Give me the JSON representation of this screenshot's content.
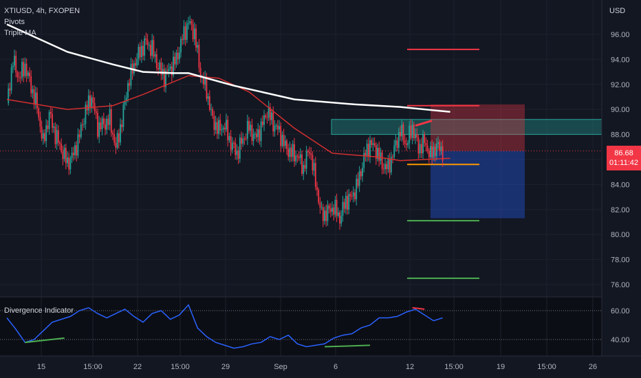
{
  "header": {
    "symbol": "XTIUSD, 4h, FXOPEN",
    "indicator_1": "Pivots",
    "indicator_2": "Triple MA",
    "currency": "USD"
  },
  "price_label": {
    "price": "86.68",
    "countdown": "01:11:42"
  },
  "lower_panel": {
    "title": "Divergence Indicator"
  },
  "colors": {
    "background": "#131722",
    "up": "#26a69a",
    "down": "#f23645",
    "ma_long": "#ffffff",
    "ma_mid": "#d32f2f",
    "osc": "#2962ff",
    "pivot_up": "#f23645",
    "pivot_down": "#4caf50",
    "orange": "#ff9800"
  },
  "chart_data": [
    {
      "type": "candlestick",
      "title": "XTIUSD, 4h, FXOPEN",
      "y_axis": {
        "ticks": [
          "96.00",
          "94.00",
          "92.00",
          "90.00",
          "88.00",
          "86.00",
          "84.00",
          "82.00",
          "80.00",
          "78.00",
          "76.00"
        ],
        "ylim": [
          75.0,
          98.5
        ]
      },
      "x_axis": {
        "ticks": [
          "15",
          "15:00",
          "22",
          "15:00",
          "29",
          "Sep",
          "6",
          "12",
          "15:00",
          "19",
          "15:00",
          "26"
        ]
      },
      "last_price": 86.68,
      "close_path": [
        [
          0,
          90.5
        ],
        [
          4,
          93.9
        ],
        [
          8,
          92.5
        ],
        [
          12,
          93.5
        ],
        [
          16,
          91.8
        ],
        [
          20,
          90.2
        ],
        [
          24,
          87.3
        ],
        [
          28,
          89.6
        ],
        [
          32,
          88.0
        ],
        [
          36,
          86.8
        ],
        [
          40,
          85.7
        ],
        [
          44,
          86.4
        ],
        [
          48,
          87.9
        ],
        [
          52,
          89.9
        ],
        [
          56,
          91.0
        ],
        [
          60,
          88.6
        ],
        [
          64,
          88.8
        ],
        [
          68,
          89.2
        ],
        [
          72,
          86.9
        ],
        [
          76,
          89.1
        ],
        [
          80,
          92.0
        ],
        [
          84,
          93.6
        ],
        [
          88,
          94.6
        ],
        [
          92,
          95.4
        ],
        [
          96,
          94.8
        ],
        [
          100,
          93.4
        ],
        [
          104,
          92.6
        ],
        [
          108,
          93.3
        ],
        [
          112,
          94.0
        ],
        [
          116,
          95.7
        ],
        [
          120,
          97.0
        ],
        [
          124,
          96.1
        ],
        [
          128,
          92.8
        ],
        [
          132,
          91.5
        ],
        [
          136,
          89.1
        ],
        [
          140,
          88.4
        ],
        [
          144,
          88.7
        ],
        [
          148,
          87.3
        ],
        [
          152,
          86.5
        ],
        [
          156,
          87.6
        ],
        [
          160,
          88.6
        ],
        [
          164,
          87.7
        ],
        [
          168,
          88.5
        ],
        [
          172,
          89.9
        ],
        [
          176,
          88.9
        ],
        [
          180,
          88.2
        ],
        [
          184,
          87.0
        ],
        [
          188,
          86.5
        ],
        [
          192,
          86.3
        ],
        [
          196,
          85.3
        ],
        [
          200,
          86.9
        ],
        [
          204,
          84.2
        ],
        [
          208,
          81.5
        ],
        [
          212,
          81.8
        ],
        [
          216,
          82.2
        ],
        [
          220,
          81.3
        ],
        [
          224,
          82.7
        ],
        [
          228,
          83.0
        ],
        [
          232,
          84.1
        ],
        [
          236,
          86.1
        ],
        [
          240,
          87.3
        ],
        [
          244,
          86.8
        ],
        [
          248,
          85.6
        ],
        [
          252,
          85.3
        ],
        [
          256,
          86.8
        ],
        [
          260,
          88.3
        ],
        [
          264,
          87.2
        ],
        [
          268,
          88.6
        ],
        [
          272,
          86.9
        ],
        [
          276,
          87.4
        ],
        [
          280,
          86.3
        ],
        [
          284,
          87.1
        ],
        [
          288,
          86.68
        ]
      ],
      "ma_long_path": [
        [
          0,
          96.8
        ],
        [
          40,
          94.6
        ],
        [
          70,
          93.6
        ],
        [
          90,
          93.0
        ],
        [
          110,
          92.9
        ],
        [
          120,
          92.9
        ],
        [
          150,
          91.9
        ],
        [
          190,
          90.8
        ],
        [
          230,
          90.4
        ],
        [
          260,
          90.2
        ],
        [
          293,
          89.8
        ]
      ],
      "ma_mid_path": [
        [
          0,
          90.8
        ],
        [
          40,
          90.0
        ],
        [
          70,
          90.3
        ],
        [
          90,
          91.2
        ],
        [
          110,
          92.2
        ],
        [
          120,
          92.7
        ],
        [
          140,
          92.5
        ],
        [
          160,
          91.4
        ],
        [
          190,
          88.5
        ],
        [
          215,
          86.5
        ],
        [
          245,
          86.2
        ],
        [
          260,
          85.9
        ],
        [
          293,
          86.1
        ]
      ]
    },
    {
      "type": "line",
      "title": "Divergence Indicator",
      "y_axis": {
        "ticks": [
          "60.00",
          "40.00"
        ],
        "ylim": [
          32,
          70
        ]
      },
      "values_path": [
        [
          0,
          55
        ],
        [
          6,
          47
        ],
        [
          12,
          38
        ],
        [
          18,
          40
        ],
        [
          24,
          46
        ],
        [
          30,
          52
        ],
        [
          36,
          54
        ],
        [
          42,
          56
        ],
        [
          48,
          60
        ],
        [
          54,
          62
        ],
        [
          60,
          58
        ],
        [
          66,
          55
        ],
        [
          72,
          58
        ],
        [
          78,
          61
        ],
        [
          84,
          56
        ],
        [
          90,
          52
        ],
        [
          96,
          58
        ],
        [
          102,
          60
        ],
        [
          108,
          54
        ],
        [
          114,
          57
        ],
        [
          120,
          64
        ],
        [
          126,
          48
        ],
        [
          132,
          42
        ],
        [
          138,
          38
        ],
        [
          144,
          36
        ],
        [
          150,
          34
        ],
        [
          156,
          35
        ],
        [
          162,
          37
        ],
        [
          168,
          38
        ],
        [
          174,
          42
        ],
        [
          180,
          40
        ],
        [
          186,
          43
        ],
        [
          192,
          37
        ],
        [
          198,
          35
        ],
        [
          204,
          36
        ],
        [
          210,
          37
        ],
        [
          216,
          41
        ],
        [
          222,
          43
        ],
        [
          228,
          44
        ],
        [
          234,
          48
        ],
        [
          240,
          50
        ],
        [
          246,
          55
        ],
        [
          252,
          55
        ],
        [
          258,
          56
        ],
        [
          264,
          59
        ],
        [
          270,
          61
        ],
        [
          276,
          57
        ],
        [
          282,
          53
        ],
        [
          288,
          55
        ]
      ]
    }
  ]
}
